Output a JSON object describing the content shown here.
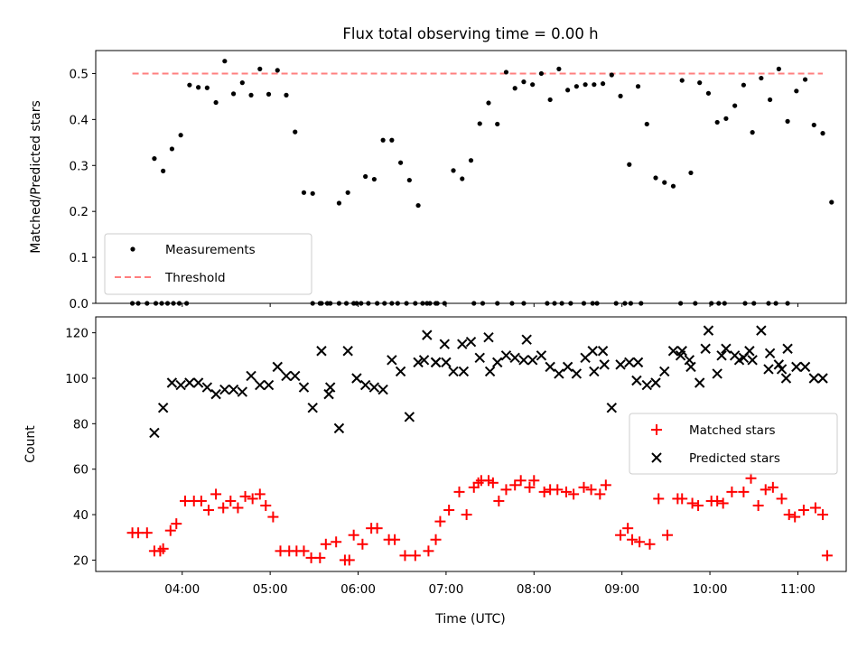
{
  "colors": {
    "measurement": "#000000",
    "threshold": "#ff7f7f",
    "matched": "#ff0000",
    "predicted": "#000000"
  },
  "chart_data": [
    {
      "type": "scatter",
      "title": "Flux total observing time = 0.00 h",
      "ylabel": "Matched/Predicted stars",
      "xlim": [
        "03:01",
        "11:33"
      ],
      "ylim": [
        0,
        0.55
      ],
      "yticks": [
        "0.0",
        "0.1",
        "0.2",
        "0.3",
        "0.4",
        "0.5"
      ],
      "grid": false,
      "legend_position": "lower-left",
      "series": [
        {
          "name": "Measurements",
          "marker": "dot",
          "x": [
            "03:26",
            "03:30",
            "03:36",
            "03:41",
            "03:47",
            "03:53",
            "03:59",
            "04:05",
            "04:11",
            "04:17",
            "04:23",
            "04:29",
            "04:35",
            "04:41",
            "04:47",
            "04:53",
            "04:59",
            "05:05",
            "05:11",
            "05:17",
            "05:23",
            "05:29",
            "05:35",
            "05:41",
            "05:47",
            "05:53",
            "05:59",
            "06:05",
            "06:11",
            "06:17",
            "06:23",
            "06:29",
            "06:35",
            "06:41",
            "06:47",
            "06:53",
            "06:59",
            "07:05",
            "07:11",
            "07:17",
            "07:23",
            "07:29",
            "07:35",
            "07:41",
            "07:47",
            "07:53",
            "07:59",
            "08:05",
            "08:11",
            "08:17",
            "08:23",
            "08:29",
            "08:35",
            "08:41",
            "08:47",
            "08:53",
            "08:59",
            "09:05",
            "09:11",
            "09:17",
            "09:23",
            "09:29",
            "09:35",
            "09:41",
            "09:47",
            "09:53",
            "09:59",
            "10:05",
            "10:11",
            "10:17",
            "10:23",
            "10:29",
            "10:35",
            "10:41",
            "10:47",
            "10:53",
            "10:59",
            "11:05",
            "11:11",
            "11:17",
            "11:23",
            "03:42",
            "03:46",
            "03:50",
            "03:54",
            "03:58",
            "04:03",
            "05:29",
            "05:34",
            "05:39",
            "05:47",
            "05:52",
            "05:57",
            "06:02",
            "06:07",
            "06:13",
            "06:18",
            "06:23",
            "06:27",
            "06:33",
            "06:39",
            "06:44",
            "06:49",
            "06:54",
            "07:19",
            "07:25",
            "07:35",
            "07:45",
            "07:53",
            "08:09",
            "08:14",
            "08:19",
            "08:25",
            "08:34",
            "08:40",
            "08:43",
            "08:56",
            "09:02",
            "09:06",
            "09:13",
            "09:40",
            "09:50",
            "10:01",
            "10:06",
            "10:10",
            "10:24",
            "10:30",
            "10:40",
            "10:45",
            "10:53"
          ],
          "y": [
            0.0,
            0.0,
            0.0,
            0.315,
            0.288,
            0.336,
            0.366,
            0.475,
            0.47,
            0.469,
            0.437,
            0.527,
            0.456,
            0.48,
            0.453,
            0.51,
            0.455,
            0.507,
            0.453,
            0.373,
            0.241,
            0.239,
            0.0,
            0.0,
            0.218,
            0.241,
            0.0,
            0.276,
            0.27,
            0.355,
            0.355,
            0.306,
            0.268,
            0.213,
            0.0,
            0.0,
            0.0,
            0.289,
            0.271,
            0.311,
            0.391,
            0.436,
            0.39,
            0.503,
            0.468,
            0.482,
            0.476,
            0.5,
            0.443,
            0.51,
            0.464,
            0.472,
            0.476,
            0.476,
            0.478,
            0.497,
            0.451,
            0.302,
            0.472,
            0.39,
            0.273,
            0.263,
            0.255,
            0.485,
            0.284,
            0.48,
            0.457,
            0.394,
            0.402,
            0.43,
            0.475,
            0.372,
            0.49,
            0.443,
            0.51,
            0.396,
            0.462,
            0.487,
            0.388,
            0.37,
            0.22,
            0.0,
            0.0,
            0.0,
            0.0,
            0.0,
            0.0,
            0.0,
            0.0,
            0.0,
            0.0,
            0.0,
            0.0,
            0.0,
            0.0,
            0.0,
            0.0,
            0.0,
            0.0,
            0.0,
            0.0,
            0.0,
            0.0,
            0.0,
            0.0,
            0.0,
            0.0,
            0.0,
            0.0,
            0.0,
            0.0,
            0.0,
            0.0,
            0.0,
            0.0,
            0.0,
            0.0,
            0.0,
            0.0,
            0.0,
            0.0,
            0.0,
            0.0,
            0.0,
            0.0,
            0.0,
            0.0,
            0.0,
            0.0,
            0.0
          ]
        },
        {
          "name": "Threshold",
          "style": "dashed",
          "x": [
            "03:26",
            "11:17"
          ],
          "y": [
            0.5,
            0.5
          ]
        }
      ]
    },
    {
      "type": "scatter",
      "xlabel": "Time (UTC)",
      "ylabel": "Count",
      "xlim": [
        "03:01",
        "11:33"
      ],
      "ylim": [
        15,
        127
      ],
      "xticks": [
        "04:00",
        "05:00",
        "06:00",
        "07:00",
        "08:00",
        "09:00",
        "10:00",
        "11:00"
      ],
      "yticks": [
        "20",
        "40",
        "60",
        "80",
        "100",
        "120"
      ],
      "grid": false,
      "legend_position": "center-right",
      "series": [
        {
          "name": "Matched stars",
          "marker": "plus",
          "x": [
            "03:26",
            "03:30",
            "03:36",
            "03:41",
            "03:45",
            "03:47",
            "03:52",
            "03:56",
            "04:02",
            "04:08",
            "04:13",
            "04:18",
            "04:23",
            "04:28",
            "04:33",
            "04:38",
            "04:43",
            "04:48",
            "04:53",
            "04:57",
            "05:02",
            "05:07",
            "05:13",
            "05:18",
            "05:23",
            "05:28",
            "05:34",
            "05:38",
            "05:45",
            "05:51",
            "05:54",
            "05:57",
            "06:03",
            "06:09",
            "06:13",
            "06:21",
            "06:25",
            "06:32",
            "06:39",
            "06:48",
            "06:53",
            "06:56",
            "07:02",
            "07:09",
            "07:14",
            "07:19",
            "07:22",
            "07:24",
            "07:29",
            "07:32",
            "07:36",
            "07:41",
            "07:47",
            "07:51",
            "07:57",
            "08:00",
            "08:07",
            "08:11",
            "08:16",
            "08:22",
            "08:27",
            "08:34",
            "08:39",
            "08:45",
            "08:49",
            "08:59",
            "09:04",
            "09:07",
            "09:12",
            "09:19",
            "09:25",
            "09:31",
            "09:38",
            "09:41",
            "09:48",
            "09:52",
            "10:01",
            "10:05",
            "10:09",
            "10:15",
            "10:23",
            "10:28",
            "10:33",
            "10:38",
            "10:43",
            "10:49",
            "10:54",
            "10:58",
            "11:04",
            "11:12",
            "11:17",
            "11:20"
          ],
          "y": [
            32,
            32,
            32,
            24,
            24,
            25,
            33,
            36,
            46,
            46,
            46,
            42,
            49,
            43,
            46,
            43,
            48,
            47,
            49,
            44,
            39,
            24,
            24,
            24,
            24,
            21,
            21,
            27,
            28,
            20,
            20,
            31,
            27,
            34,
            34,
            29,
            29,
            22,
            22,
            24,
            29,
            37,
            42,
            50,
            40,
            52,
            54,
            55,
            55,
            54,
            46,
            51,
            53,
            55,
            52,
            55,
            50,
            51,
            51,
            50,
            49,
            52,
            51,
            49,
            53,
            31,
            34,
            29,
            28,
            27,
            47,
            31,
            47,
            47,
            45,
            44,
            46,
            46,
            45,
            50,
            50,
            56,
            44,
            51,
            52,
            47,
            40,
            39,
            42,
            43,
            40,
            22
          ]
        },
        {
          "name": "Predicted stars",
          "marker": "x",
          "x": [
            "03:41",
            "03:47",
            "03:53",
            "03:59",
            "04:05",
            "04:11",
            "04:17",
            "04:23",
            "04:29",
            "04:35",
            "04:41",
            "04:47",
            "04:53",
            "04:59",
            "05:05",
            "05:11",
            "05:17",
            "05:23",
            "05:29",
            "05:35",
            "05:41",
            "05:47",
            "05:53",
            "05:59",
            "06:05",
            "06:11",
            "06:17",
            "06:23",
            "06:29",
            "06:35",
            "06:41",
            "06:47",
            "06:53",
            "06:59",
            "07:05",
            "07:11",
            "07:17",
            "07:23",
            "07:29",
            "07:35",
            "07:41",
            "07:47",
            "07:53",
            "07:59",
            "08:05",
            "08:11",
            "08:17",
            "08:23",
            "08:29",
            "08:35",
            "08:41",
            "08:47",
            "08:53",
            "08:59",
            "09:05",
            "09:11",
            "09:17",
            "09:23",
            "09:29",
            "09:35",
            "09:41",
            "09:47",
            "09:53",
            "09:59",
            "10:05",
            "10:11",
            "10:17",
            "10:23",
            "10:29",
            "10:35",
            "10:41",
            "10:47",
            "10:53",
            "10:59",
            "11:05",
            "11:11",
            "11:17",
            "06:45",
            "06:53",
            "07:00",
            "07:12",
            "07:30",
            "07:55",
            "08:40",
            "08:48",
            "09:10",
            "09:40",
            "09:46",
            "09:57",
            "10:08",
            "10:20",
            "10:27",
            "10:40",
            "10:49",
            "10:52",
            "05:40"
          ],
          "y": [
            76,
            87,
            98,
            97,
            98,
            98,
            96,
            93,
            95,
            95,
            94,
            101,
            97,
            97,
            105,
            101,
            101,
            96,
            87,
            112,
            96,
            78,
            112,
            100,
            97,
            96,
            95,
            108,
            103,
            83,
            107,
            119,
            107,
            115,
            103,
            115,
            116,
            109,
            118,
            107,
            110,
            109,
            108,
            108,
            110,
            105,
            102,
            105,
            102,
            109,
            103,
            112,
            87,
            106,
            107,
            107,
            97,
            98,
            103,
            112,
            112,
            105,
            98,
            121,
            102,
            113,
            110,
            109,
            108,
            121,
            111,
            106,
            113,
            105,
            105,
            100,
            100,
            108,
            107,
            107,
            103,
            103,
            117,
            112,
            106,
            99,
            110,
            108,
            113,
            110,
            108,
            112,
            104,
            104,
            100,
            93
          ]
        }
      ]
    }
  ]
}
